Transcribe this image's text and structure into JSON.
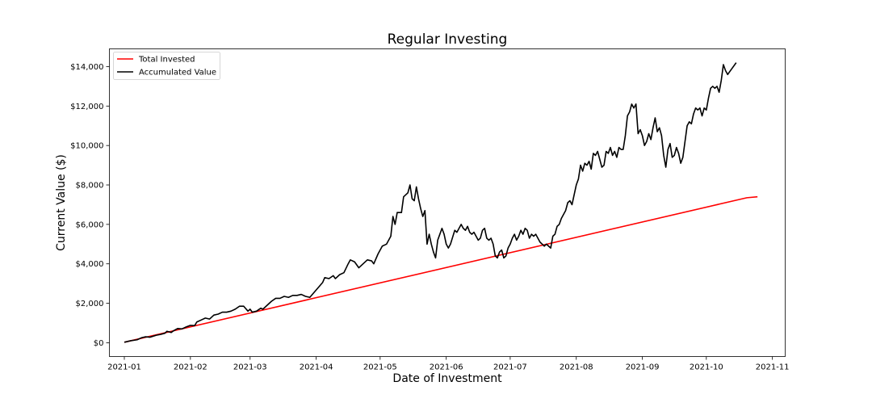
{
  "chart_data": {
    "type": "line",
    "title": "Regular Investing",
    "xlabel": "Date of Investment",
    "ylabel": "Current Value ($)",
    "x_range_days": [
      -7,
      310
    ],
    "ylim": [
      -700,
      14900
    ],
    "x_ticks": [
      {
        "label": "2021-01",
        "day": 0
      },
      {
        "label": "2021-02",
        "day": 31
      },
      {
        "label": "2021-03",
        "day": 59
      },
      {
        "label": "2021-04",
        "day": 90
      },
      {
        "label": "2021-05",
        "day": 120
      },
      {
        "label": "2021-06",
        "day": 151
      },
      {
        "label": "2021-07",
        "day": 181
      },
      {
        "label": "2021-08",
        "day": 212
      },
      {
        "label": "2021-09",
        "day": 243
      },
      {
        "label": "2021-10",
        "day": 273
      },
      {
        "label": "2021-11",
        "day": 304
      }
    ],
    "y_ticks": [
      {
        "label": "$0",
        "value": 0
      },
      {
        "label": "$2,000",
        "value": 2000
      },
      {
        "label": "$4,000",
        "value": 4000
      },
      {
        "label": "$6,000",
        "value": 6000
      },
      {
        "label": "$8,000",
        "value": 8000
      },
      {
        "label": "$10,000",
        "value": 10000
      },
      {
        "label": "$12,000",
        "value": 12000
      },
      {
        "label": "$14,000",
        "value": 14000
      }
    ],
    "legend_position": "upper-left",
    "series": [
      {
        "name": "Total Invested",
        "color": "#ff0000",
        "points": [
          [
            0,
            25
          ],
          [
            292,
            7350
          ],
          [
            297,
            7400
          ]
        ]
      },
      {
        "name": "Accumulated Value",
        "color": "#000000",
        "points": [
          [
            0,
            25
          ],
          [
            3,
            100
          ],
          [
            6,
            150
          ],
          [
            8,
            250
          ],
          [
            10,
            300
          ],
          [
            12,
            280
          ],
          [
            15,
            380
          ],
          [
            17,
            420
          ],
          [
            19,
            480
          ],
          [
            20,
            580
          ],
          [
            22,
            520
          ],
          [
            23,
            600
          ],
          [
            25,
            720
          ],
          [
            27,
            700
          ],
          [
            29,
            800
          ],
          [
            31,
            880
          ],
          [
            33,
            870
          ],
          [
            34,
            1050
          ],
          [
            36,
            1150
          ],
          [
            38,
            1250
          ],
          [
            40,
            1200
          ],
          [
            42,
            1400
          ],
          [
            44,
            1450
          ],
          [
            46,
            1550
          ],
          [
            48,
            1550
          ],
          [
            50,
            1600
          ],
          [
            52,
            1700
          ],
          [
            54,
            1850
          ],
          [
            56,
            1850
          ],
          [
            58,
            1600
          ],
          [
            59,
            1700
          ],
          [
            60,
            1550
          ],
          [
            62,
            1600
          ],
          [
            64,
            1750
          ],
          [
            65,
            1700
          ],
          [
            67,
            1900
          ],
          [
            69,
            2100
          ],
          [
            71,
            2250
          ],
          [
            73,
            2250
          ],
          [
            75,
            2350
          ],
          [
            77,
            2300
          ],
          [
            79,
            2400
          ],
          [
            81,
            2400
          ],
          [
            83,
            2450
          ],
          [
            85,
            2350
          ],
          [
            87,
            2300
          ],
          [
            89,
            2550
          ],
          [
            91,
            2800
          ],
          [
            93,
            3050
          ],
          [
            94,
            3300
          ],
          [
            96,
            3250
          ],
          [
            98,
            3400
          ],
          [
            99,
            3250
          ],
          [
            101,
            3450
          ],
          [
            103,
            3550
          ],
          [
            105,
            4000
          ],
          [
            106,
            4200
          ],
          [
            108,
            4100
          ],
          [
            110,
            3800
          ],
          [
            112,
            4000
          ],
          [
            114,
            4200
          ],
          [
            116,
            4150
          ],
          [
            117,
            4000
          ],
          [
            119,
            4500
          ],
          [
            121,
            4900
          ],
          [
            123,
            5000
          ],
          [
            125,
            5400
          ],
          [
            126,
            6400
          ],
          [
            127,
            6000
          ],
          [
            128,
            6600
          ],
          [
            130,
            6600
          ],
          [
            131,
            7400
          ],
          [
            133,
            7600
          ],
          [
            134,
            8000
          ],
          [
            135,
            7300
          ],
          [
            136,
            7200
          ],
          [
            137,
            7900
          ],
          [
            138,
            7300
          ],
          [
            139,
            6800
          ],
          [
            140,
            6400
          ],
          [
            141,
            6700
          ],
          [
            142,
            5000
          ],
          [
            143,
            5500
          ],
          [
            144,
            5000
          ],
          [
            145,
            4600
          ],
          [
            146,
            4300
          ],
          [
            147,
            5200
          ],
          [
            148,
            5500
          ],
          [
            149,
            5800
          ],
          [
            150,
            5500
          ],
          [
            151,
            5000
          ],
          [
            152,
            4800
          ],
          [
            153,
            5000
          ],
          [
            155,
            5700
          ],
          [
            156,
            5600
          ],
          [
            157,
            5800
          ],
          [
            158,
            6000
          ],
          [
            159,
            5800
          ],
          [
            160,
            5700
          ],
          [
            161,
            5900
          ],
          [
            162,
            5600
          ],
          [
            163,
            5500
          ],
          [
            164,
            5600
          ],
          [
            165,
            5400
          ],
          [
            166,
            5200
          ],
          [
            167,
            5300
          ],
          [
            168,
            5700
          ],
          [
            169,
            5800
          ],
          [
            170,
            5300
          ],
          [
            171,
            5200
          ],
          [
            172,
            5300
          ],
          [
            173,
            5000
          ],
          [
            174,
            4400
          ],
          [
            175,
            4300
          ],
          [
            176,
            4600
          ],
          [
            177,
            4700
          ],
          [
            178,
            4300
          ],
          [
            179,
            4400
          ],
          [
            180,
            4800
          ],
          [
            181,
            5000
          ],
          [
            182,
            5300
          ],
          [
            183,
            5500
          ],
          [
            184,
            5200
          ],
          [
            185,
            5400
          ],
          [
            186,
            5700
          ],
          [
            187,
            5500
          ],
          [
            188,
            5800
          ],
          [
            189,
            5700
          ],
          [
            190,
            5300
          ],
          [
            191,
            5500
          ],
          [
            192,
            5400
          ],
          [
            193,
            5500
          ],
          [
            194,
            5300
          ],
          [
            195,
            5100
          ],
          [
            196,
            5000
          ],
          [
            197,
            4900
          ],
          [
            198,
            5000
          ],
          [
            199,
            4900
          ],
          [
            200,
            4800
          ],
          [
            201,
            5400
          ],
          [
            202,
            5500
          ],
          [
            203,
            5900
          ],
          [
            204,
            6000
          ],
          [
            205,
            6300
          ],
          [
            206,
            6500
          ],
          [
            207,
            6700
          ],
          [
            208,
            7100
          ],
          [
            209,
            7200
          ],
          [
            210,
            7000
          ],
          [
            211,
            7500
          ],
          [
            212,
            8000
          ],
          [
            213,
            8300
          ],
          [
            214,
            9000
          ],
          [
            215,
            8700
          ],
          [
            216,
            9100
          ],
          [
            217,
            9000
          ],
          [
            218,
            9200
          ],
          [
            219,
            8800
          ],
          [
            220,
            9600
          ],
          [
            221,
            9500
          ],
          [
            222,
            9700
          ],
          [
            223,
            9300
          ],
          [
            224,
            8900
          ],
          [
            225,
            9000
          ],
          [
            226,
            9700
          ],
          [
            227,
            9600
          ],
          [
            228,
            9900
          ],
          [
            229,
            9500
          ],
          [
            230,
            9700
          ],
          [
            231,
            9400
          ],
          [
            232,
            9900
          ],
          [
            233,
            9800
          ],
          [
            234,
            9800
          ],
          [
            235,
            10500
          ],
          [
            236,
            11500
          ],
          [
            237,
            11700
          ],
          [
            238,
            12100
          ],
          [
            239,
            11900
          ],
          [
            240,
            12100
          ],
          [
            241,
            10600
          ],
          [
            242,
            10800
          ],
          [
            243,
            10500
          ],
          [
            244,
            10000
          ],
          [
            245,
            10200
          ],
          [
            246,
            10600
          ],
          [
            247,
            10300
          ],
          [
            248,
            10900
          ],
          [
            249,
            11400
          ],
          [
            250,
            10700
          ],
          [
            251,
            10900
          ],
          [
            252,
            10500
          ],
          [
            253,
            9500
          ],
          [
            254,
            8900
          ],
          [
            255,
            9800
          ],
          [
            256,
            10100
          ],
          [
            257,
            9400
          ],
          [
            258,
            9500
          ],
          [
            259,
            9900
          ],
          [
            260,
            9600
          ],
          [
            261,
            9100
          ],
          [
            262,
            9400
          ],
          [
            263,
            10200
          ],
          [
            264,
            11000
          ],
          [
            265,
            11200
          ],
          [
            266,
            11100
          ],
          [
            267,
            11600
          ],
          [
            268,
            11900
          ],
          [
            269,
            11800
          ],
          [
            270,
            11900
          ],
          [
            271,
            11500
          ],
          [
            272,
            11900
          ],
          [
            273,
            11800
          ],
          [
            274,
            12400
          ],
          [
            275,
            12900
          ],
          [
            276,
            13000
          ],
          [
            277,
            12900
          ],
          [
            278,
            13000
          ],
          [
            279,
            12700
          ],
          [
            280,
            13300
          ],
          [
            281,
            14100
          ],
          [
            282,
            13800
          ],
          [
            283,
            13600
          ],
          [
            285,
            13900
          ],
          [
            287,
            14200
          ]
        ]
      }
    ]
  }
}
